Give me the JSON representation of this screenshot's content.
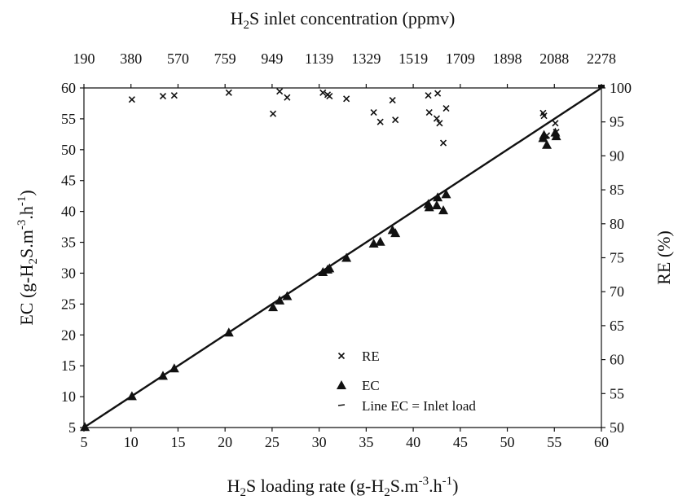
{
  "chart_data": {
    "type": "scatter",
    "top_axis": {
      "title_parts": [
        "H",
        "2",
        "S inlet concentration (ppmv)"
      ],
      "tick_labels": [
        "190",
        "380",
        "570",
        "759",
        "949",
        "1139",
        "1329",
        "1519",
        "1709",
        "1898",
        "2088",
        "2278"
      ]
    },
    "x_axis": {
      "title_parts": [
        "H",
        "2",
        "S loading rate (g-H",
        "2",
        "S.m",
        "-3",
        ".h",
        "-1",
        ")"
      ],
      "xlim": [
        5,
        60
      ],
      "ticks": [
        5,
        10,
        15,
        20,
        25,
        30,
        35,
        40,
        45,
        50,
        55,
        60
      ]
    },
    "y_left": {
      "title_parts": [
        "EC (g-H",
        "2",
        "S.m",
        "-3",
        ".h",
        "-1",
        ")"
      ],
      "ylim": [
        5,
        60
      ],
      "ticks": [
        5,
        10,
        15,
        20,
        25,
        30,
        35,
        40,
        45,
        50,
        55,
        60
      ]
    },
    "y_right": {
      "title": "RE (%)",
      "ylim": [
        50,
        100
      ],
      "ticks": [
        50,
        55,
        60,
        65,
        70,
        75,
        80,
        85,
        90,
        95,
        100
      ]
    },
    "legend": {
      "placement": "bottom-center",
      "entries": [
        {
          "symbol": "x",
          "label": "RE"
        },
        {
          "symbol": "triangle",
          "label": "EC"
        },
        {
          "symbol": "line",
          "label": "Line EC = Inlet load"
        }
      ]
    },
    "grid": false,
    "series": [
      {
        "name": "RE",
        "axis": "right",
        "marker": "x",
        "points": [
          [
            10.1,
            98.3
          ],
          [
            13.4,
            98.8
          ],
          [
            14.6,
            98.9
          ],
          [
            20.4,
            99.3
          ],
          [
            25.1,
            96.2
          ],
          [
            25.8,
            99.5
          ],
          [
            26.6,
            98.6
          ],
          [
            30.4,
            99.3
          ],
          [
            30.9,
            99.0
          ],
          [
            31.1,
            98.8
          ],
          [
            32.9,
            98.4
          ],
          [
            35.8,
            96.4
          ],
          [
            36.5,
            95.0
          ],
          [
            37.8,
            98.2
          ],
          [
            38.1,
            95.3
          ],
          [
            41.6,
            98.9
          ],
          [
            41.7,
            96.4
          ],
          [
            42.5,
            95.5
          ],
          [
            42.6,
            99.2
          ],
          [
            42.8,
            94.8
          ],
          [
            43.2,
            91.9
          ],
          [
            43.5,
            97.0
          ],
          [
            53.8,
            96.3
          ],
          [
            53.9,
            95.9
          ],
          [
            54.2,
            93.0
          ],
          [
            55.1,
            94.8
          ],
          [
            55.2,
            93.5
          ]
        ]
      },
      {
        "name": "EC",
        "axis": "left",
        "marker": "triangle",
        "points": [
          [
            5.1,
            5.1
          ],
          [
            10.1,
            10.1
          ],
          [
            13.4,
            13.4
          ],
          [
            14.6,
            14.6
          ],
          [
            20.4,
            20.4
          ],
          [
            25.1,
            24.5
          ],
          [
            25.8,
            25.6
          ],
          [
            26.6,
            26.3
          ],
          [
            30.4,
            30.2
          ],
          [
            30.9,
            30.6
          ],
          [
            31.1,
            30.8
          ],
          [
            32.9,
            32.5
          ],
          [
            35.8,
            34.8
          ],
          [
            36.5,
            35.1
          ],
          [
            37.8,
            37.0
          ],
          [
            38.1,
            36.5
          ],
          [
            41.6,
            41.2
          ],
          [
            41.7,
            40.7
          ],
          [
            42.5,
            41.0
          ],
          [
            42.6,
            42.3
          ],
          [
            43.2,
            40.2
          ],
          [
            43.5,
            42.8
          ],
          [
            53.8,
            51.9
          ],
          [
            53.9,
            52.4
          ],
          [
            54.2,
            50.8
          ],
          [
            55.1,
            52.8
          ],
          [
            55.2,
            52.2
          ]
        ]
      },
      {
        "name": "Line EC = Inlet load",
        "axis": "left",
        "marker": "line",
        "points": [
          [
            5,
            5
          ],
          [
            60,
            60
          ]
        ]
      }
    ]
  }
}
